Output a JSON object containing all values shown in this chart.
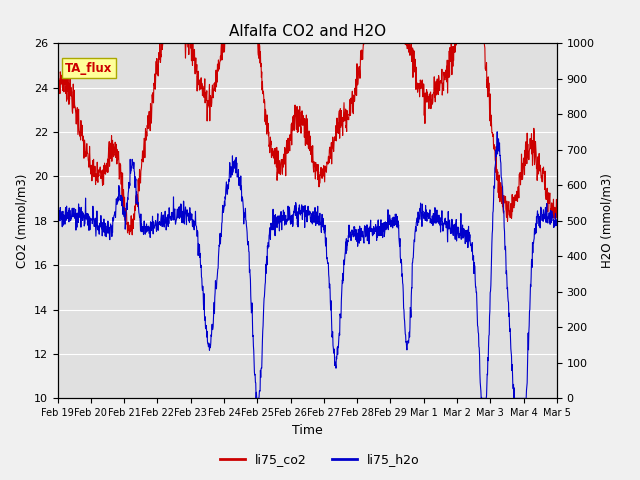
{
  "title": "Alfalfa CO2 and H2O",
  "xlabel": "Time",
  "ylabel_left": "CO2 (mmol/m3)",
  "ylabel_right": "H2O (mmol/m3)",
  "ylim_left": [
    10,
    26
  ],
  "ylim_right": [
    0,
    1000
  ],
  "yticks_left": [
    10,
    12,
    14,
    16,
    18,
    20,
    22,
    24,
    26
  ],
  "yticks_right": [
    0,
    100,
    200,
    300,
    400,
    500,
    600,
    700,
    800,
    900,
    1000
  ],
  "xtick_labels": [
    "Feb 19",
    "Feb 20",
    "Feb 21",
    "Feb 22",
    "Feb 23",
    "Feb 24",
    "Feb 25",
    "Feb 26",
    "Feb 27",
    "Feb 28",
    "Feb 29",
    "Mar 1",
    "Mar 2",
    "Mar 3",
    "Mar 4",
    "Mar 5"
  ],
  "color_co2": "#cc0000",
  "color_h2o": "#0000cc",
  "background_plot": "#e0e0e0",
  "background_fig": "#f0f0f0",
  "annotation_text": "TA_flux",
  "annotation_color": "#cc0000",
  "annotation_bg": "#ffff99",
  "legend_labels": [
    "li75_co2",
    "li75_h2o"
  ],
  "linewidth": 0.8,
  "n_points": 1500
}
